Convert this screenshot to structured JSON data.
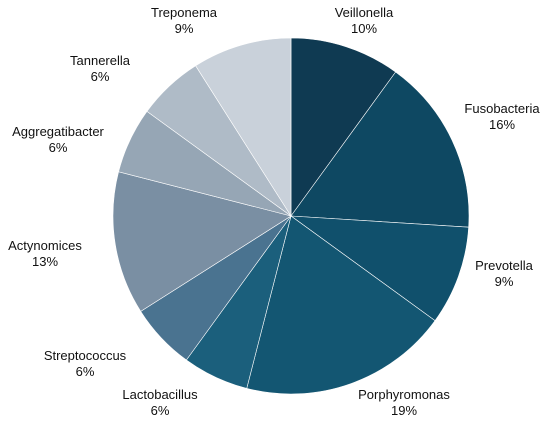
{
  "chart_data": {
    "type": "pie",
    "title": "",
    "start_angle_deg": 0,
    "direction": "clockwise",
    "slices": [
      {
        "label": "Veillonella",
        "value": 10,
        "display": "10%",
        "color": "#0f3a52"
      },
      {
        "label": "Fusobacteria",
        "value": 16,
        "display": "16%",
        "color": "#0e4862"
      },
      {
        "label": "Prevotella",
        "value": 9,
        "display": "9%",
        "color": "#10506c"
      },
      {
        "label": "Porphyromonas",
        "value": 19,
        "display": "19%",
        "color": "#135672"
      },
      {
        "label": "Lactobacillus",
        "value": 6,
        "display": "6%",
        "color": "#1b5f7c"
      },
      {
        "label": "Streptococcus",
        "value": 6,
        "display": "6%",
        "color": "#4a7390"
      },
      {
        "label": "Actynomices",
        "value": 13,
        "display": "13%",
        "color": "#7a8fa3"
      },
      {
        "label": "Aggregatibacter",
        "value": 6,
        "display": "6%",
        "color": "#96a6b5"
      },
      {
        "label": "Tannerella",
        "value": 6,
        "display": "6%",
        "color": "#afbbc7"
      },
      {
        "label": "Treponema",
        "value": 9,
        "display": "9%",
        "color": "#c9d1da"
      }
    ]
  }
}
